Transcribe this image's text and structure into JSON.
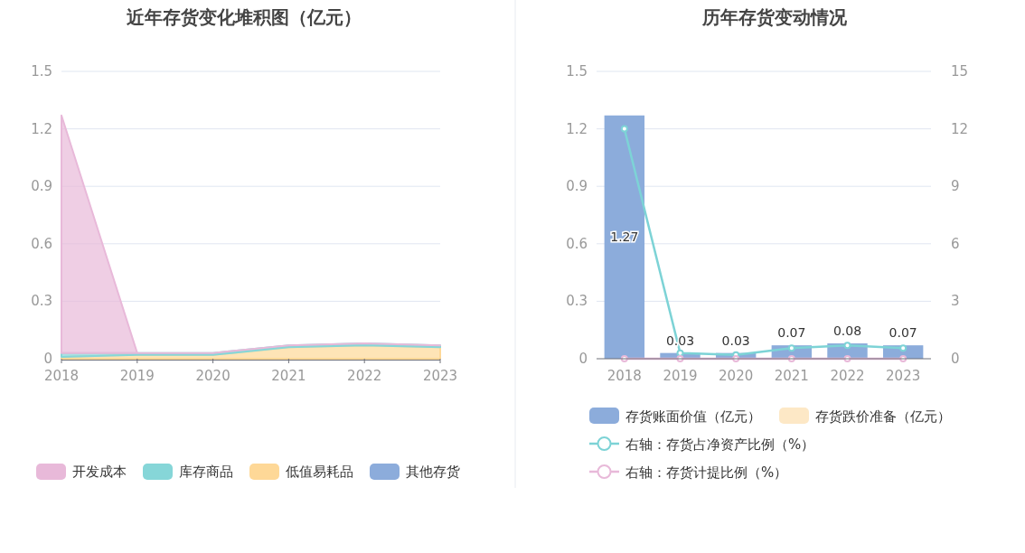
{
  "chart_data": [
    {
      "type": "area",
      "title": "近年存货变化堆积图（亿元）",
      "categories": [
        "2018",
        "2019",
        "2020",
        "2021",
        "2022",
        "2023"
      ],
      "stacked": true,
      "ylim": [
        0,
        1.5
      ],
      "yticks": [
        0,
        0.3,
        0.6,
        0.9,
        1.2,
        1.5
      ],
      "grid": "y",
      "legend": "bottom",
      "series": [
        {
          "name": "其他存货",
          "color": "#8cacdb",
          "values": [
            null,
            null,
            null,
            null,
            null,
            null
          ]
        },
        {
          "name": "低值易耗品",
          "color": "#fed897",
          "values": [
            0.01,
            0.02,
            0.02,
            0.06,
            0.07,
            0.06
          ]
        },
        {
          "name": "库存商品",
          "color": "#86d6d8",
          "values": [
            0.02,
            0.01,
            0.01,
            0.01,
            0.01,
            0.01
          ]
        },
        {
          "name": "开发成本",
          "color": "#e8b9d9",
          "values": [
            1.24,
            0,
            0,
            0,
            0,
            0
          ]
        }
      ]
    },
    {
      "type": "bar",
      "title": "历年存货变动情况",
      "stacked": true,
      "categories": [
        "2018",
        "2019",
        "2020",
        "2021",
        "2022",
        "2023"
      ],
      "ylim": [
        0,
        1.5
      ],
      "yticks": [
        0,
        0.3,
        0.6,
        0.9,
        1.2,
        1.5
      ],
      "y2lim": [
        0,
        15
      ],
      "y2ticks": [
        0,
        3,
        6,
        9,
        12,
        15
      ],
      "grid": "y",
      "legend": "bottom",
      "series": [
        {
          "name": "存货账面价值（亿元）",
          "color": "#8cacdb",
          "values": [
            1.27,
            0.03,
            0.03,
            0.07,
            0.08,
            0.07
          ],
          "value_labels": [
            "1.27",
            "0.03",
            "0.03",
            "0.07",
            "0.08",
            "0.07"
          ]
        },
        {
          "name": "存货跌价准备（亿元）",
          "color": "#fde8c6",
          "values": [
            0,
            0,
            0,
            0,
            0,
            0
          ]
        },
        {
          "name": "右轴：存货占净资产比例（%）",
          "type": "line",
          "axis": "y2",
          "marker": "circle",
          "color": "#7dd3d6",
          "values": [
            12.0,
            0.3,
            0.2,
            0.55,
            0.7,
            0.55
          ]
        },
        {
          "name": "右轴：存货计提比例（%）",
          "type": "line",
          "axis": "y2",
          "marker": "circle",
          "color": "#e8b9d9",
          "values": [
            0,
            0,
            0,
            0,
            0,
            0
          ]
        }
      ]
    }
  ]
}
